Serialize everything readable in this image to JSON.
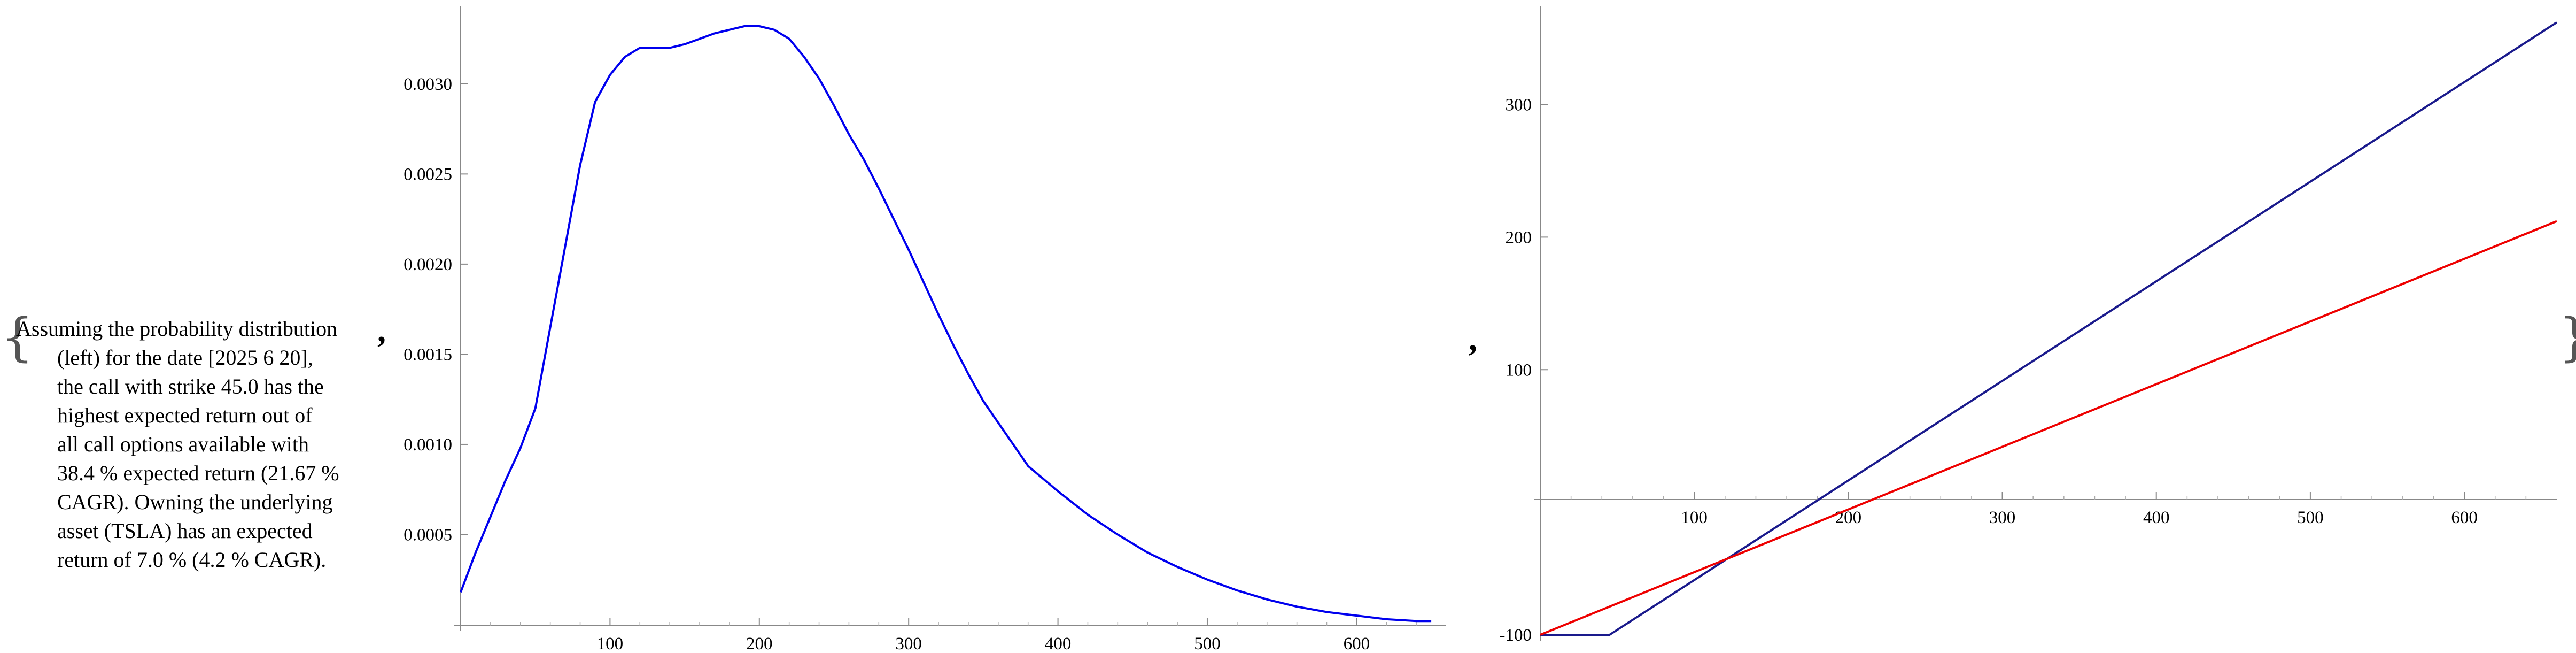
{
  "description": {
    "lines": [
      "Assuming the probability distribution",
      "(left) for the date [2025 6 20],",
      "the call with strike 45.0 has the",
      "highest expected return out of",
      "all call options available with",
      "38.4 % expected return (21.67 %",
      "CAGR). Owning the underlying",
      "asset (TSLA) has an expected",
      "return of 7.0 % (4.2 % CAGR)."
    ]
  },
  "separators": {
    "brace_open": "{",
    "brace_close": "}",
    "comma": ","
  },
  "chart_data": [
    {
      "type": "line",
      "title": "",
      "xlabel": "",
      "ylabel": "",
      "xlim": [
        0,
        660
      ],
      "ylim": [
        0,
        0.0034
      ],
      "xticks": [
        100,
        200,
        300,
        400,
        500,
        600
      ],
      "xtick_labels": [
        "100",
        "200",
        "300",
        "400",
        "500",
        "600"
      ],
      "yticks": [
        0.0005,
        0.001,
        0.0015,
        0.002,
        0.0025,
        0.003
      ],
      "ytick_labels": [
        "0.0005",
        "0.0010",
        "0.0015",
        "0.0020",
        "0.0025",
        "0.0030"
      ],
      "grid": false,
      "series": [
        {
          "color": "#0000ee",
          "x": [
            0,
            10,
            20,
            30,
            40,
            50,
            60,
            70,
            80,
            90,
            100,
            110,
            120,
            130,
            140,
            150,
            160,
            170,
            180,
            190,
            200,
            210,
            220,
            230,
            240,
            250,
            260,
            270,
            280,
            290,
            300,
            310,
            320,
            330,
            340,
            350,
            360,
            370,
            380,
            400,
            420,
            440,
            460,
            480,
            500,
            520,
            540,
            560,
            580,
            600,
            620,
            640,
            650
          ],
          "y": [
            0.00018,
            0.0004,
            0.0006,
            0.0008,
            0.00098,
            0.0012,
            0.00165,
            0.0021,
            0.00255,
            0.0029,
            0.00305,
            0.00315,
            0.0032,
            0.0032,
            0.0032,
            0.00322,
            0.00325,
            0.00328,
            0.0033,
            0.00332,
            0.00332,
            0.0033,
            0.00325,
            0.00315,
            0.00303,
            0.00288,
            0.00272,
            0.00258,
            0.00242,
            0.00225,
            0.00208,
            0.0019,
            0.00172,
            0.00155,
            0.00139,
            0.00124,
            0.00112,
            0.001,
            0.00088,
            0.00074,
            0.00061,
            0.0005,
            0.0004,
            0.00032,
            0.00025,
            0.00019,
            0.00014,
            0.0001,
            7e-05,
            5e-05,
            3e-05,
            2e-05,
            2e-05
          ]
        }
      ]
    },
    {
      "type": "line",
      "title": "",
      "xlabel": "",
      "ylabel": "",
      "xlim": [
        0,
        660
      ],
      "ylim": [
        -100,
        370
      ],
      "xticks": [
        100,
        200,
        300,
        400,
        500,
        600
      ],
      "xtick_labels": [
        "100",
        "200",
        "300",
        "400",
        "500",
        "600"
      ],
      "yticks": [
        -100,
        100,
        200,
        300
      ],
      "ytick_labels": [
        "-100",
        "100",
        "200",
        "300"
      ],
      "grid": false,
      "series": [
        {
          "color": "#1a1a8c",
          "x": [
            0,
            45,
            660
          ],
          "y": [
            -100,
            -100,
            362
          ]
        },
        {
          "color": "#ee0000",
          "x": [
            0,
            660
          ],
          "y": [
            -100,
            212
          ]
        }
      ]
    }
  ]
}
